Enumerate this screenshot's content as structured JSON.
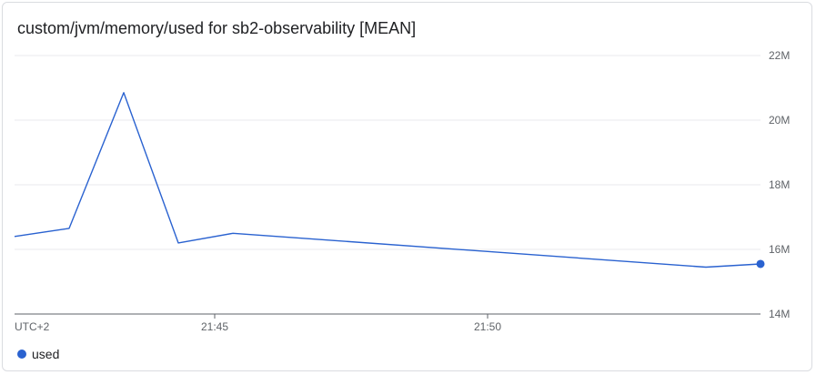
{
  "chart_data": {
    "type": "line",
    "title": "custom/jvm/memory/used for sb2-observability [MEAN]",
    "timezone_label": "UTC+2",
    "x_ticks": [
      "21:45",
      "21:50"
    ],
    "y_ticks": [
      "22M",
      "20M",
      "18M",
      "16M",
      "14M"
    ],
    "ylim": [
      14000000,
      22000000
    ],
    "xlim": [
      "21:41:20",
      "21:55:00"
    ],
    "grid": true,
    "legend_position": "bottom-left",
    "series": [
      {
        "name": "used",
        "color": "#2a62d0",
        "x": [
          "21:41:20",
          "21:42:20",
          "21:43:20",
          "21:44:20",
          "21:45:20",
          "21:54:00",
          "21:55:00"
        ],
        "values": [
          16400000,
          16650000,
          20850000,
          16200000,
          16500000,
          15450000,
          15550000
        ]
      }
    ]
  }
}
